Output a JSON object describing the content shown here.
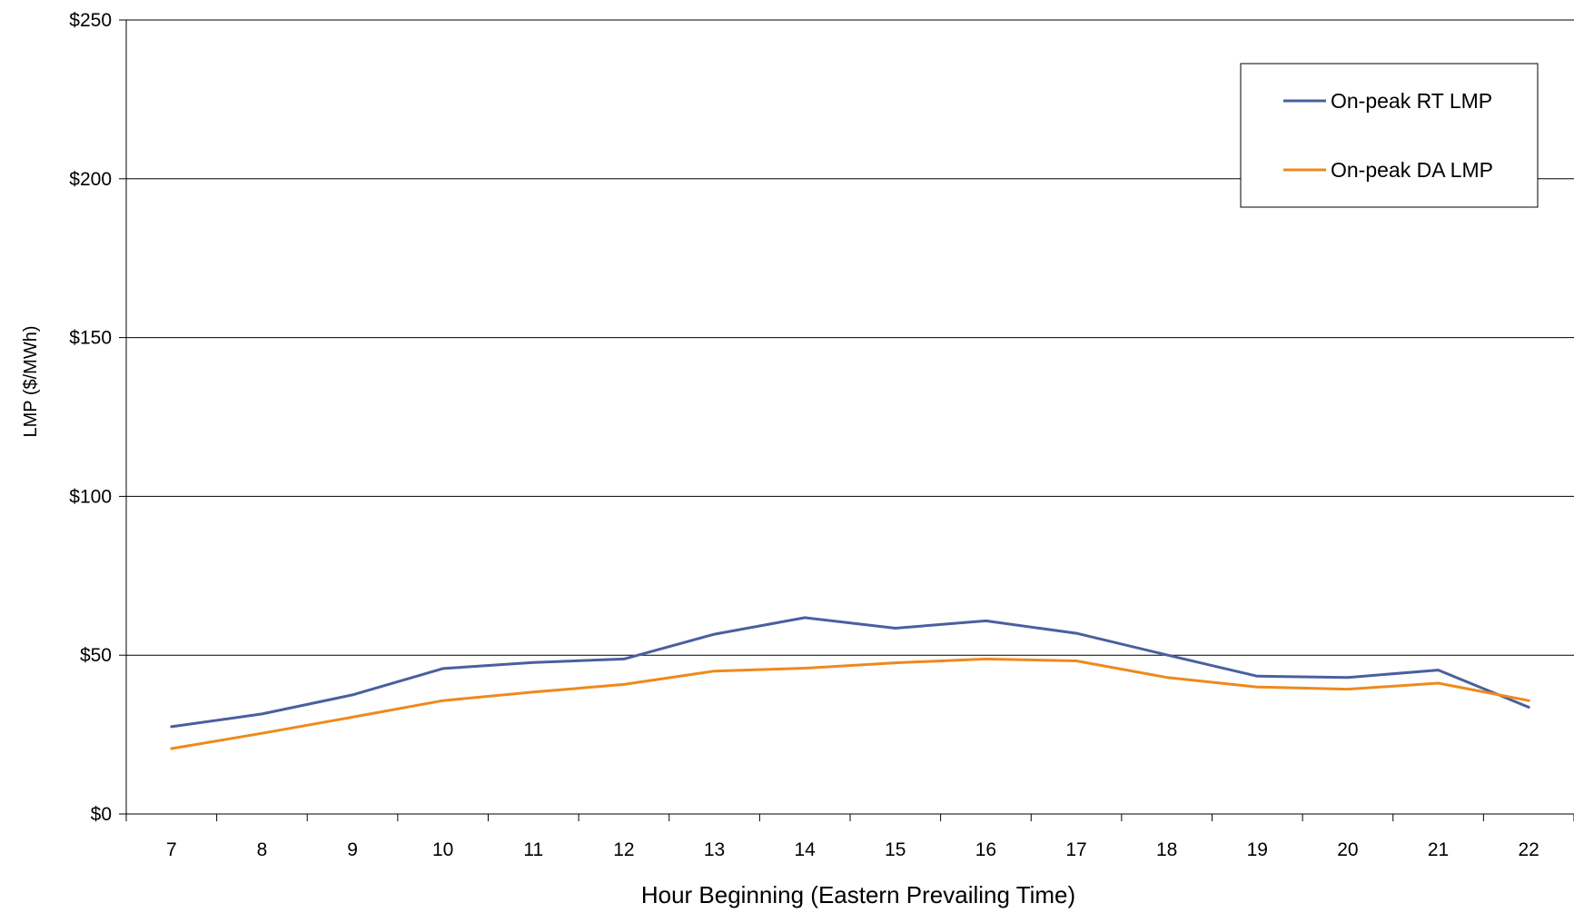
{
  "chart_data": {
    "type": "line",
    "title": "",
    "xlabel": "Hour Beginning (Eastern Prevailing Time)",
    "ylabel": "LMP ($/MWh)",
    "ylim": [
      0,
      250
    ],
    "yticks": [
      0,
      50,
      100,
      150,
      200,
      250
    ],
    "ytick_labels": [
      "$0",
      "$50",
      "$100",
      "$150",
      "$200",
      "$250"
    ],
    "x": [
      7,
      8,
      9,
      10,
      11,
      12,
      13,
      14,
      15,
      16,
      17,
      18,
      19,
      20,
      21,
      22
    ],
    "grid": true,
    "legend_position": "top-right",
    "series": [
      {
        "name": "On-peak RT LMP",
        "color": "#4a5f9e",
        "values": [
          27.5,
          31.5,
          37.5,
          45.8,
          47.7,
          48.8,
          56.6,
          61.8,
          58.5,
          60.8,
          56.9,
          50.1,
          43.4,
          43.0,
          45.3,
          33.6
        ]
      },
      {
        "name": "On-peak DA LMP",
        "color": "#ee8a1c",
        "values": [
          20.6,
          25.4,
          30.5,
          35.7,
          38.4,
          40.8,
          45.0,
          45.9,
          47.6,
          48.8,
          48.2,
          43.0,
          40.0,
          39.3,
          41.2,
          35.7
        ]
      }
    ]
  }
}
